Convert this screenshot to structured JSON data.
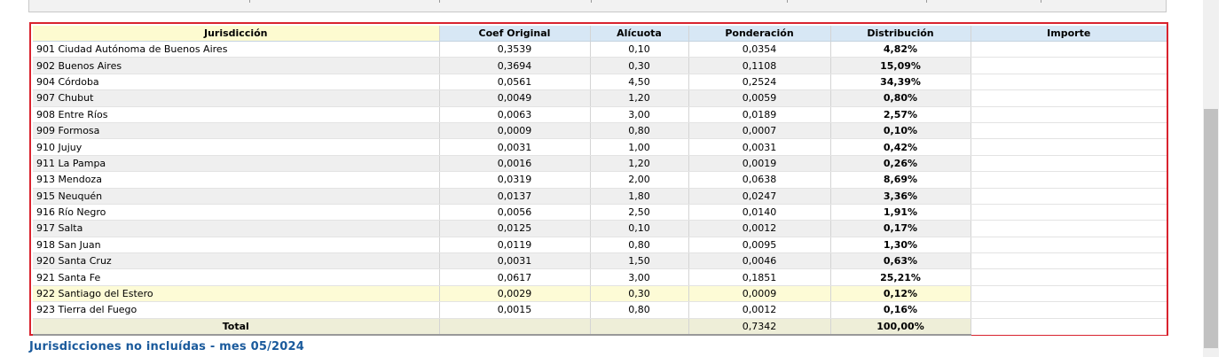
{
  "table": {
    "headers": {
      "jurisdiccion": "Jurisdicción",
      "coef_original": "Coef Original",
      "alicuota": "Alícuota",
      "ponderacion": "Ponderación",
      "distribucion": "Distribución",
      "importe": "Importe"
    },
    "rows": [
      {
        "jurisdiccion": "901 Ciudad Autónoma de Buenos Aires",
        "coef": "0,3539",
        "alicuota": "0,10",
        "ponderacion": "0,0354",
        "distribucion": "4,82%",
        "importe": ""
      },
      {
        "jurisdiccion": "902 Buenos Aires",
        "coef": "0,3694",
        "alicuota": "0,30",
        "ponderacion": "0,1108",
        "distribucion": "15,09%",
        "importe": ""
      },
      {
        "jurisdiccion": "904 Córdoba",
        "coef": "0,0561",
        "alicuota": "4,50",
        "ponderacion": "0,2524",
        "distribucion": "34,39%",
        "importe": ""
      },
      {
        "jurisdiccion": "907 Chubut",
        "coef": "0,0049",
        "alicuota": "1,20",
        "ponderacion": "0,0059",
        "distribucion": "0,80%",
        "importe": ""
      },
      {
        "jurisdiccion": "908 Entre Ríos",
        "coef": "0,0063",
        "alicuota": "3,00",
        "ponderacion": "0,0189",
        "distribucion": "2,57%",
        "importe": ""
      },
      {
        "jurisdiccion": "909 Formosa",
        "coef": "0,0009",
        "alicuota": "0,80",
        "ponderacion": "0,0007",
        "distribucion": "0,10%",
        "importe": ""
      },
      {
        "jurisdiccion": "910 Jujuy",
        "coef": "0,0031",
        "alicuota": "1,00",
        "ponderacion": "0,0031",
        "distribucion": "0,42%",
        "importe": ""
      },
      {
        "jurisdiccion": "911 La Pampa",
        "coef": "0,0016",
        "alicuota": "1,20",
        "ponderacion": "0,0019",
        "distribucion": "0,26%",
        "importe": ""
      },
      {
        "jurisdiccion": "913 Mendoza",
        "coef": "0,0319",
        "alicuota": "2,00",
        "ponderacion": "0,0638",
        "distribucion": "8,69%",
        "importe": ""
      },
      {
        "jurisdiccion": "915 Neuquén",
        "coef": "0,0137",
        "alicuota": "1,80",
        "ponderacion": "0,0247",
        "distribucion": "3,36%",
        "importe": ""
      },
      {
        "jurisdiccion": "916 Río Negro",
        "coef": "0,0056",
        "alicuota": "2,50",
        "ponderacion": "0,0140",
        "distribucion": "1,91%",
        "importe": ""
      },
      {
        "jurisdiccion": "917 Salta",
        "coef": "0,0125",
        "alicuota": "0,10",
        "ponderacion": "0,0012",
        "distribucion": "0,17%",
        "importe": ""
      },
      {
        "jurisdiccion": "918 San Juan",
        "coef": "0,0119",
        "alicuota": "0,80",
        "ponderacion": "0,0095",
        "distribucion": "1,30%",
        "importe": ""
      },
      {
        "jurisdiccion": "920 Santa Cruz",
        "coef": "0,0031",
        "alicuota": "1,50",
        "ponderacion": "0,0046",
        "distribucion": "0,63%",
        "importe": ""
      },
      {
        "jurisdiccion": "921 Santa Fe",
        "coef": "0,0617",
        "alicuota": "3,00",
        "ponderacion": "0,1851",
        "distribucion": "25,21%",
        "importe": ""
      },
      {
        "jurisdiccion": "922 Santiago del Estero",
        "coef": "0,0029",
        "alicuota": "0,30",
        "ponderacion": "0,0009",
        "distribucion": "0,12%",
        "importe": ""
      },
      {
        "jurisdiccion": "923 Tierra del Fuego",
        "coef": "0,0015",
        "alicuota": "0,80",
        "ponderacion": "0,0012",
        "distribucion": "0,16%",
        "importe": ""
      }
    ],
    "total": {
      "label": "Total",
      "coef": "",
      "alicuota": "",
      "ponderacion": "0,7342",
      "distribucion": "100,00%"
    }
  },
  "footer": {
    "section_link": "Jurisdicciones no incluídas - mes 05/2024"
  }
}
